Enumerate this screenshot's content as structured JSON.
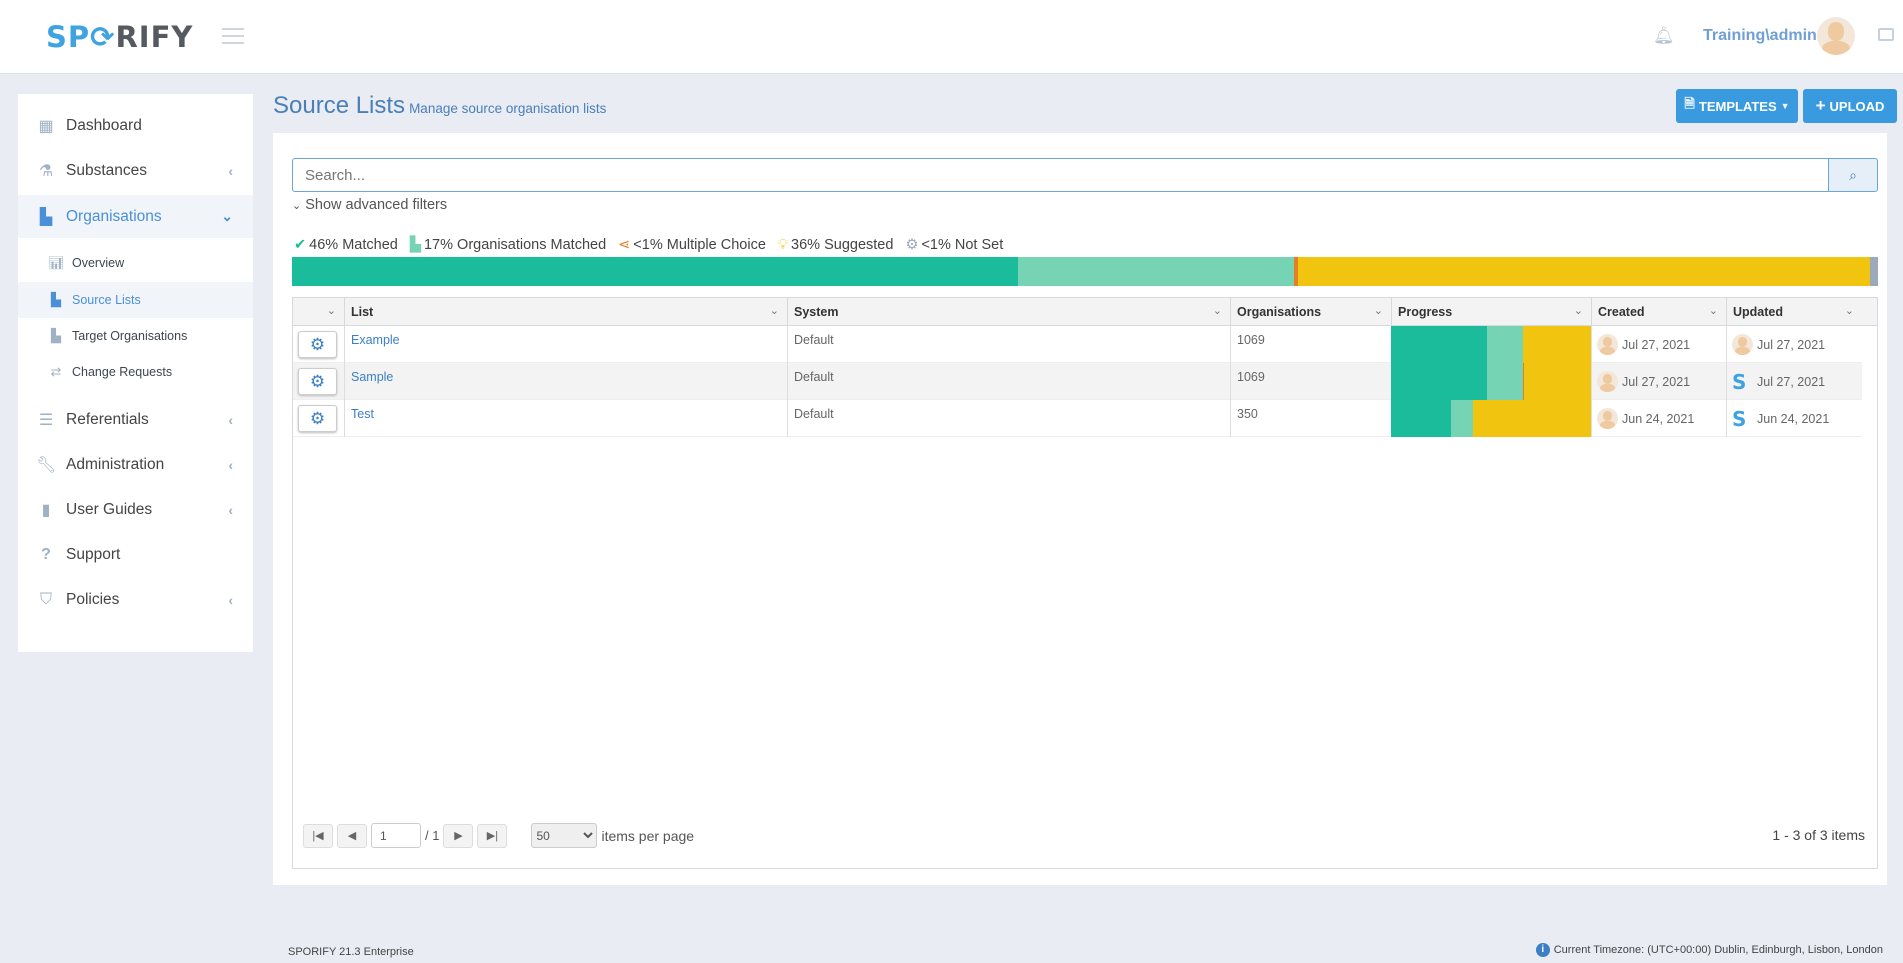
{
  "header": {
    "logo": "SPORIFY",
    "logo_parts": [
      "S",
      "P",
      "O",
      "RIFY"
    ],
    "user": "Training\\admin"
  },
  "sidebar": {
    "items": [
      {
        "label": "Dashboard",
        "icon": "grid-icon",
        "chevron": false
      },
      {
        "label": "Substances",
        "icon": "flask-icon",
        "chevron": true
      },
      {
        "label": "Organisations",
        "icon": "factory-icon",
        "chevron": true,
        "active": true,
        "children": [
          {
            "label": "Overview",
            "icon": "bar-chart-icon"
          },
          {
            "label": "Source Lists",
            "icon": "factory-icon",
            "active": true
          },
          {
            "label": "Target Organisations",
            "icon": "factory-icon"
          },
          {
            "label": "Change Requests",
            "icon": "exchange-icon"
          }
        ]
      },
      {
        "label": "Referentials",
        "icon": "list-icon",
        "chevron": true
      },
      {
        "label": "Administration",
        "icon": "wrench-icon",
        "chevron": true
      },
      {
        "label": "User Guides",
        "icon": "book-icon",
        "chevron": true
      },
      {
        "label": "Support",
        "icon": "question-icon",
        "chevron": false
      },
      {
        "label": "Policies",
        "icon": "shield-icon",
        "chevron": true
      }
    ]
  },
  "page": {
    "title": "Source Lists",
    "subtitle": "Manage source organisation lists",
    "templates_label": "TEMPLATES",
    "upload_label": "UPLOAD"
  },
  "search": {
    "placeholder": "Search...",
    "value": "",
    "advanced_label": "Show advanced filters"
  },
  "summary": {
    "items": [
      {
        "label": "46% Matched",
        "value": 45.8,
        "color": "#1abc9c",
        "icon": "check-circle-icon"
      },
      {
        "label": "17% Organisations Matched",
        "value": 17.4,
        "color": "#76d3b4",
        "icon": "factory-icon"
      },
      {
        "label": "<1% Multiple Choice",
        "value": 0.2,
        "color": "#e67e22",
        "icon": "share-icon"
      },
      {
        "label": "36% Suggested",
        "value": 36.1,
        "color": "#f1c40f",
        "icon": "lightbulb-icon"
      },
      {
        "label": "<1% Not Set",
        "value": 0.5,
        "color": "#9aaabb",
        "icon": "gear-icon"
      }
    ]
  },
  "table": {
    "columns": [
      "List",
      "System",
      "Organisations",
      "Progress",
      "Created",
      "Updated"
    ],
    "rows": [
      {
        "list": "Example",
        "system": "Default",
        "organisations": "1069",
        "progress": [
          48,
          18,
          0,
          34
        ],
        "created": "Jul 27, 2021",
        "updated": "Jul 27, 2021",
        "updated_by": "user"
      },
      {
        "list": "Sample",
        "system": "Default",
        "organisations": "1069",
        "progress": [
          48,
          18,
          0.6,
          33.4
        ],
        "created": "Jul 27, 2021",
        "updated": "Jul 27, 2021",
        "updated_by": "system"
      },
      {
        "list": "Test",
        "system": "Default",
        "organisations": "350",
        "progress": [
          30,
          11,
          0,
          59
        ],
        "created": "Jun 24, 2021",
        "updated": "Jun 24, 2021",
        "updated_by": "system"
      }
    ]
  },
  "pager": {
    "page": "1",
    "total": "/ 1",
    "page_size": "50",
    "per_page_label": "items per page",
    "count": "1 - 3 of 3 items"
  },
  "footer": {
    "version": "SPORIFY 21.3 Enterprise",
    "timezone": "Current Timezone: (UTC+00:00) Dublin, Edinburgh, Lisbon, London"
  }
}
